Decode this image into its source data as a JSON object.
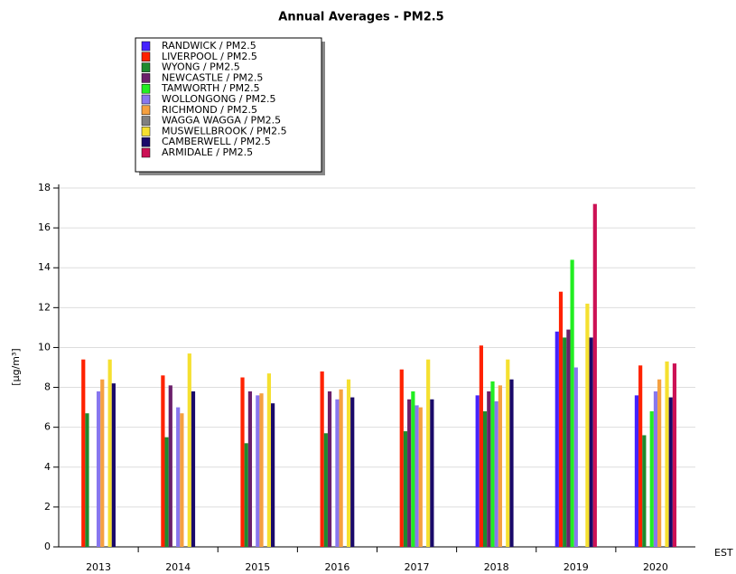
{
  "chart_data": {
    "type": "bar",
    "title": "Annual Averages - PM2.5",
    "ylabel": "[µg/m³]",
    "xlabel": "EST",
    "categories": [
      "2013",
      "2014",
      "2015",
      "2016",
      "2017",
      "2018",
      "2019",
      "2020"
    ],
    "ylim": [
      0,
      18
    ],
    "yticks": [
      0,
      2,
      4,
      6,
      8,
      10,
      12,
      14,
      16,
      18
    ],
    "grid": true,
    "legend": "top-left",
    "series": [
      {
        "name": "RANDWICK / PM2.5",
        "color": "#4422ff",
        "values": [
          null,
          null,
          null,
          null,
          null,
          7.6,
          10.8,
          7.6
        ]
      },
      {
        "name": "LIVERPOOL / PM2.5",
        "color": "#ff2200",
        "values": [
          9.4,
          8.6,
          8.5,
          8.8,
          8.9,
          10.1,
          12.8,
          9.1
        ]
      },
      {
        "name": "WYONG / PM2.5",
        "color": "#1e8a2e",
        "values": [
          6.7,
          5.5,
          5.2,
          5.7,
          5.8,
          6.8,
          10.5,
          5.6
        ]
      },
      {
        "name": "NEWCASTLE / PM2.5",
        "color": "#6b1f6b",
        "values": [
          null,
          8.1,
          7.8,
          7.8,
          7.4,
          7.8,
          10.9,
          null
        ]
      },
      {
        "name": "TAMWORTH / PM2.5",
        "color": "#22ee22",
        "values": [
          null,
          null,
          null,
          null,
          7.8,
          8.3,
          14.4,
          6.8
        ]
      },
      {
        "name": "WOLLONGONG / PM2.5",
        "color": "#8877ee",
        "values": [
          7.8,
          7.0,
          7.6,
          7.4,
          7.1,
          7.3,
          9.0,
          7.8
        ]
      },
      {
        "name": "RICHMOND / PM2.5",
        "color": "#f5a040",
        "values": [
          8.4,
          6.7,
          7.7,
          7.9,
          7.0,
          8.1,
          null,
          8.4
        ]
      },
      {
        "name": "WAGGA WAGGA / PM2.5",
        "color": "#808080",
        "values": [
          null,
          null,
          null,
          null,
          null,
          null,
          null,
          null
        ]
      },
      {
        "name": "MUSWELLBROOK / PM2.5",
        "color": "#f5e030",
        "values": [
          9.4,
          9.7,
          8.7,
          8.4,
          9.4,
          9.4,
          12.2,
          9.3
        ]
      },
      {
        "name": "CAMBERWELL / PM2.5",
        "color": "#1a0a6a",
        "values": [
          8.2,
          7.8,
          7.2,
          7.5,
          7.4,
          8.4,
          10.5,
          7.5
        ]
      },
      {
        "name": "ARMIDALE / PM2.5",
        "color": "#cc1155",
        "values": [
          null,
          null,
          null,
          null,
          null,
          null,
          17.2,
          9.2
        ]
      }
    ]
  }
}
